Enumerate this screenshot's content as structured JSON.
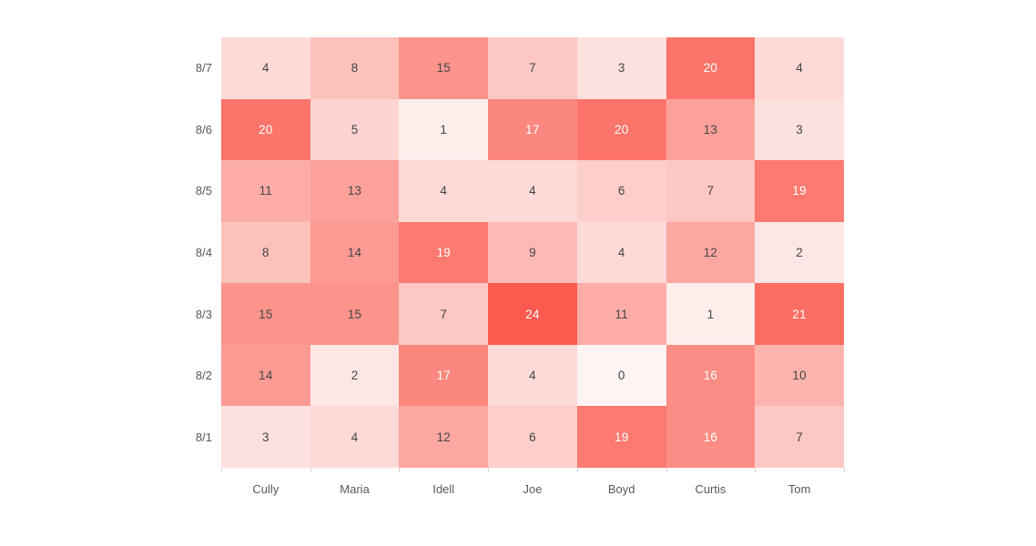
{
  "chart_data": {
    "type": "heatmap",
    "title": "",
    "xlabel": "",
    "ylabel": "",
    "x_categories": [
      "Cully",
      "Maria",
      "Idell",
      "Joe",
      "Boyd",
      "Curtis",
      "Tom"
    ],
    "y_categories_top_to_bottom": [
      "8/7",
      "8/6",
      "8/5",
      "8/4",
      "8/3",
      "8/2",
      "8/1"
    ],
    "rows": [
      {
        "label": "8/7",
        "values": [
          4,
          8,
          15,
          7,
          3,
          20,
          4
        ]
      },
      {
        "label": "8/6",
        "values": [
          20,
          5,
          1,
          17,
          20,
          13,
          3
        ]
      },
      {
        "label": "8/5",
        "values": [
          11,
          13,
          4,
          4,
          6,
          7,
          19
        ]
      },
      {
        "label": "8/4",
        "values": [
          8,
          14,
          19,
          9,
          4,
          12,
          2
        ]
      },
      {
        "label": "8/3",
        "values": [
          15,
          15,
          7,
          24,
          11,
          1,
          21
        ]
      },
      {
        "label": "8/2",
        "values": [
          14,
          2,
          17,
          4,
          0,
          16,
          10
        ]
      },
      {
        "label": "8/1",
        "values": [
          3,
          4,
          12,
          6,
          19,
          16,
          7
        ]
      }
    ],
    "value_range": [
      0,
      24
    ],
    "grid_lines": "off",
    "legend": "none",
    "data_labels": "on",
    "style": {
      "min_color": "#fdf4f3",
      "max_color": "#fc5a4e",
      "dark_text_color": "#464646",
      "light_text_color": "#ffffff",
      "light_text_min_value": 16,
      "axis_label_color": "#555961",
      "tick_color": "#d4d4d4",
      "background_color": "#ffffff"
    }
  }
}
